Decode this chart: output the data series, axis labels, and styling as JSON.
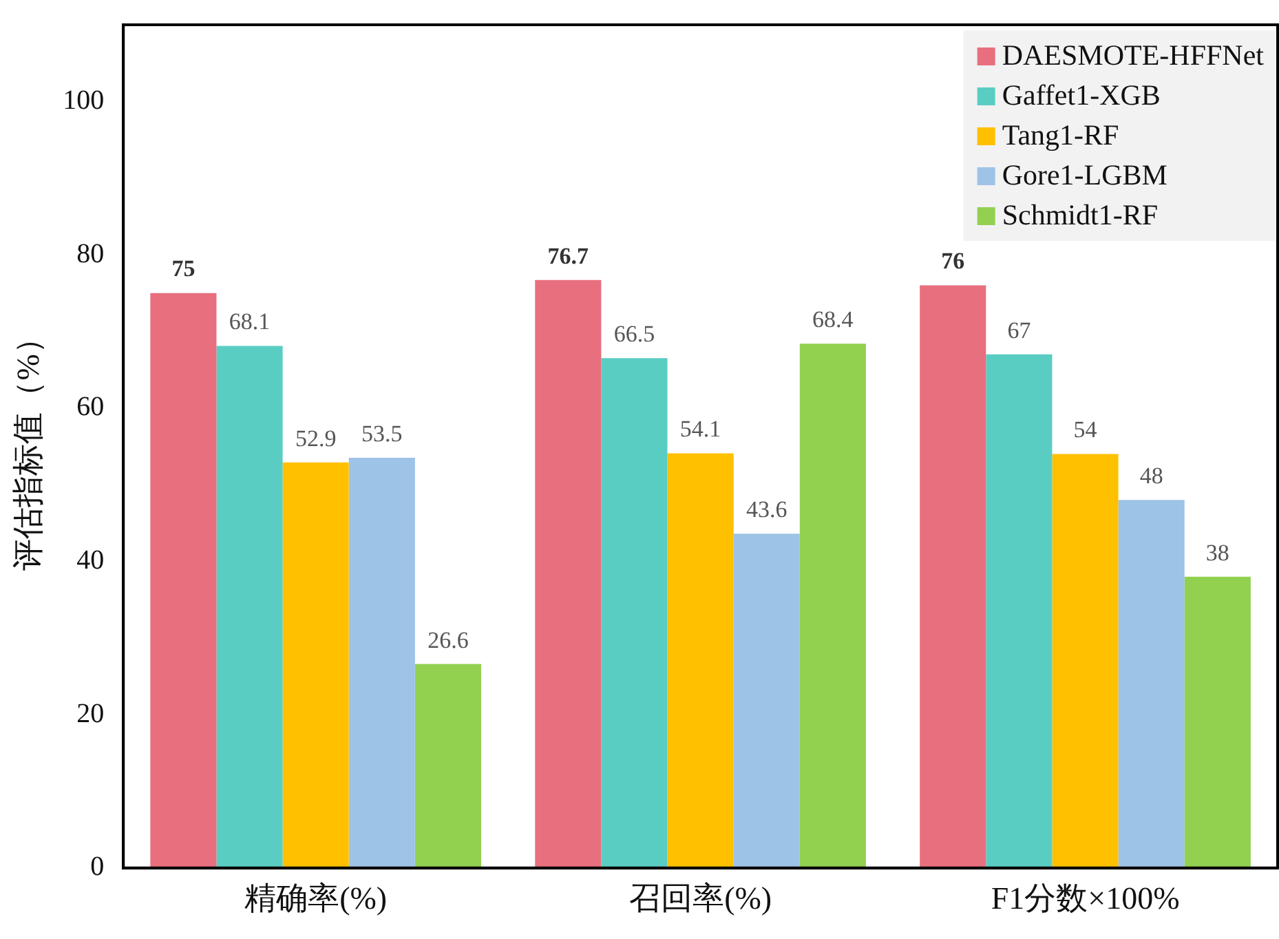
{
  "chart_data": {
    "type": "bar",
    "ylabel": "评估指标值（%）",
    "categories": [
      "精确率(%)",
      "召回率(%)",
      "F1分数×100%"
    ],
    "series": [
      {
        "name": "DAESMOTE-HFFNet",
        "color": "#e86f7e",
        "values": [
          75,
          76.7,
          76
        ]
      },
      {
        "name": "Gaffet1-XGB",
        "color": "#5acdc3",
        "values": [
          68.1,
          66.5,
          67
        ]
      },
      {
        "name": "Tang1-RF",
        "color": "#ffc000",
        "values": [
          52.9,
          54.1,
          54
        ]
      },
      {
        "name": "Gore1-LGBM",
        "color": "#9dc3e6",
        "values": [
          53.5,
          43.6,
          48
        ]
      },
      {
        "name": "Schmidt1-RF",
        "color": "#92d050",
        "values": [
          26.6,
          68.4,
          38
        ]
      }
    ],
    "ylim": [
      0,
      110
    ],
    "yticks": [
      0,
      20,
      40,
      60,
      80,
      100
    ],
    "grid": false,
    "legend": "top right",
    "data_labels": true
  }
}
